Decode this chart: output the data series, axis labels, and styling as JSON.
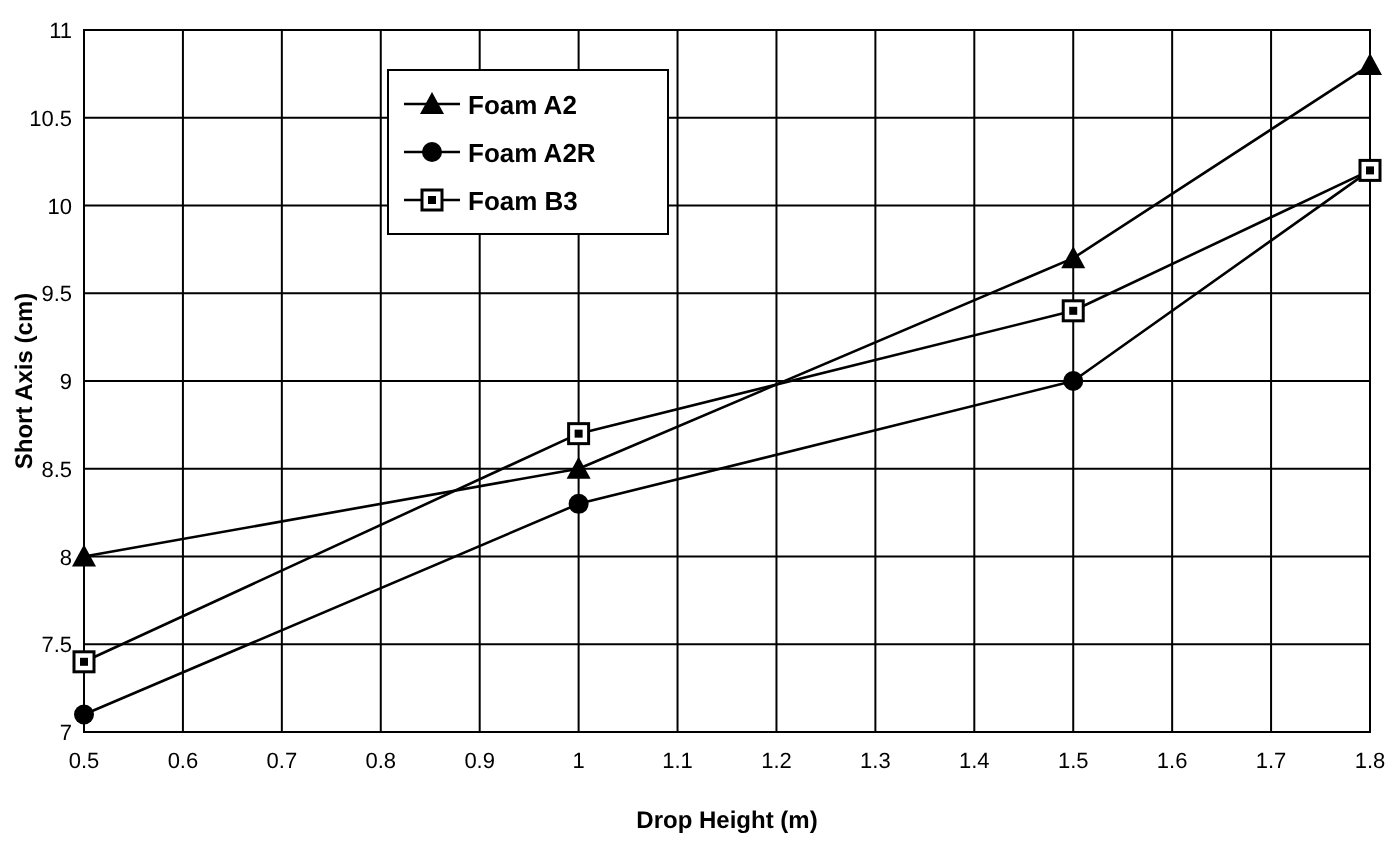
{
  "chart_data": {
    "type": "line",
    "xlabel": "Drop Height (m)",
    "ylabel": "Short Axis (cm)",
    "x": [
      0.5,
      1,
      1.5,
      1.8
    ],
    "series": [
      {
        "name": "Foam A2",
        "color": "#000000",
        "marker": "triangle",
        "values": [
          8,
          8.5,
          9.7,
          10.8
        ]
      },
      {
        "name": "Foam A2R",
        "color": "#000000",
        "marker": "circle",
        "values": [
          7.1,
          8.3,
          9.0,
          10.2
        ]
      },
      {
        "name": "Foam B3",
        "color": "#000000",
        "marker": "square",
        "values": [
          7.4,
          8.7,
          9.4,
          10.2
        ]
      }
    ],
    "xlim": [
      0.5,
      1.8
    ],
    "xticks": [
      0.5,
      0.6,
      0.7,
      0.8,
      0.9,
      1,
      1.1,
      1.2,
      1.3,
      1.4,
      1.5,
      1.6,
      1.7,
      1.8
    ],
    "ylim": [
      7,
      11
    ],
    "yticks": [
      7,
      7.5,
      8,
      8.5,
      9,
      9.5,
      10,
      10.5,
      11
    ],
    "grid": true,
    "legend": "top left",
    "line_style": "solid"
  }
}
